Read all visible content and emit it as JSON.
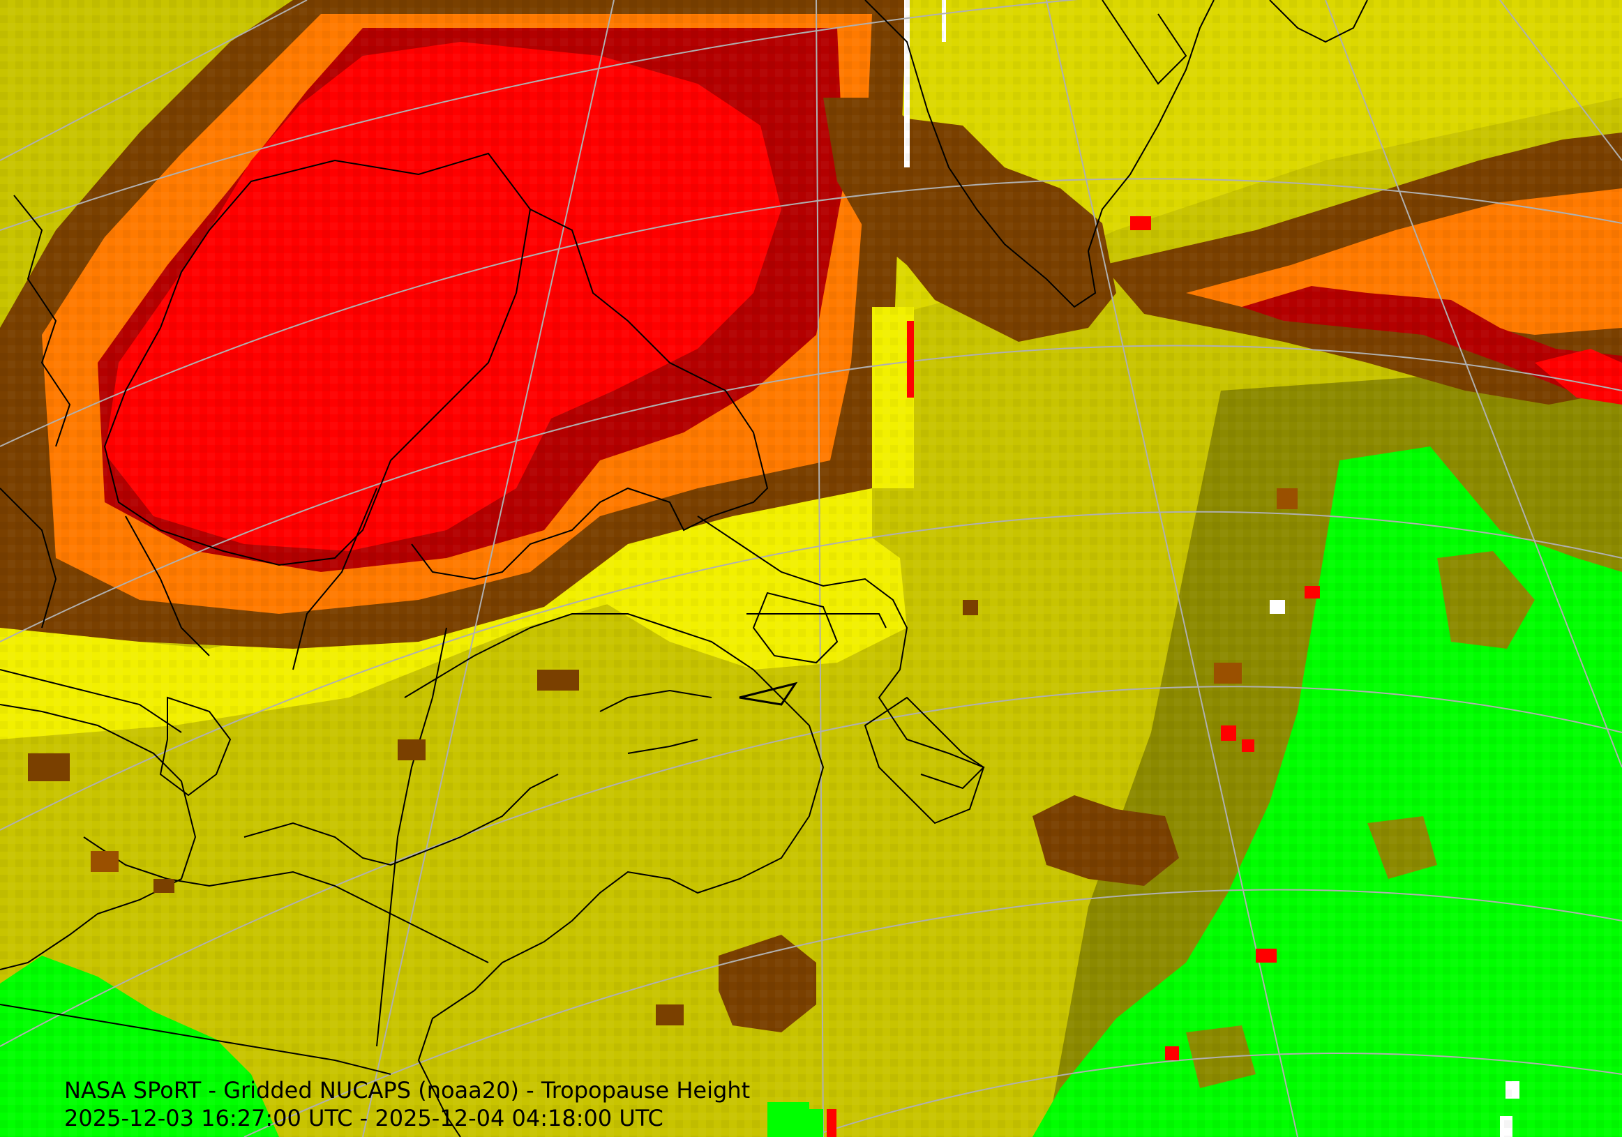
{
  "map": {
    "product": "Gridded NUCAPS Tropopause Height",
    "projection": "polar stereographic (conic-style lat/lon graticule)",
    "region": "Northeastern North America, Hudson Bay, Greenland, North Atlantic",
    "graticule_color": "#b0b0b0",
    "coastline_color": "#000000",
    "palette": {
      "green": "#00ff00",
      "dark_green": "#00cc00",
      "olive": "#8c8a00",
      "khaki": "#c8c400",
      "yellow_dull": "#dcd800",
      "yellow": "#f2f000",
      "brown": "#7a4000",
      "dark_brown": "#9a5000",
      "orange": "#ff7a00",
      "dark_red": "#b40000",
      "red": "#ff0000",
      "white": "#ffffff"
    }
  },
  "caption": {
    "line1": "NASA SPoRT - Gridded NUCAPS (noaa20) - Tropopause Height",
    "line2": "2025-12-03 16:27:00 UTC - 2025-12-04 04:18:00 UTC"
  }
}
